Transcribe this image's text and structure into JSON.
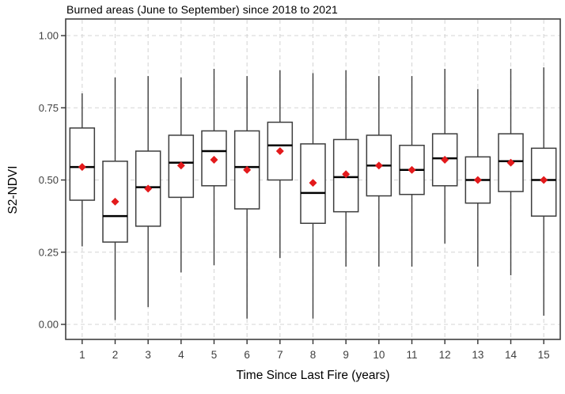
{
  "chart": {
    "title": "Burned areas (June to September) since 2018 to 2021",
    "xlabel": "Time Since Last Fire (years)",
    "ylabel": "S2-NDVI"
  },
  "colors": {
    "box_stroke": "#3d3d3d",
    "box_fill": "#ffffff",
    "median": "#000000",
    "mean_marker": "#e31a1c",
    "gridline": "#d6d6d6",
    "panel_border": "#404040",
    "tick_mark": "#333333",
    "tick_label": "#404040",
    "title_text": "#000000"
  },
  "chart_data": {
    "type": "boxplot",
    "title": "Burned areas (June to September) since 2018 to 2021",
    "xlabel": "Time Since Last Fire (years)",
    "ylabel": "S2-NDVI",
    "categories": [
      "1",
      "2",
      "3",
      "4",
      "5",
      "6",
      "7",
      "8",
      "9",
      "10",
      "11",
      "12",
      "13",
      "14",
      "15"
    ],
    "y_ticks": [
      0.0,
      0.25,
      0.5,
      0.75,
      1.0
    ],
    "y_tick_labels": [
      "0.00",
      "0.25",
      "0.50",
      "0.75",
      "1.00"
    ],
    "ylim": [
      -0.05,
      1.06
    ],
    "grid": "dashed major gridlines on both axes",
    "legend": "none",
    "mean_marker": "red filled diamond at group mean",
    "series": [
      {
        "category": "1",
        "whisker_low": 0.27,
        "q1": 0.43,
        "median": 0.545,
        "mean": 0.545,
        "q3": 0.68,
        "whisker_high": 0.8
      },
      {
        "category": "2",
        "whisker_low": 0.015,
        "q1": 0.285,
        "median": 0.375,
        "mean": 0.425,
        "q3": 0.565,
        "whisker_high": 0.855
      },
      {
        "category": "3",
        "whisker_low": 0.06,
        "q1": 0.34,
        "median": 0.475,
        "mean": 0.47,
        "q3": 0.6,
        "whisker_high": 0.86
      },
      {
        "category": "4",
        "whisker_low": 0.18,
        "q1": 0.44,
        "median": 0.56,
        "mean": 0.55,
        "q3": 0.655,
        "whisker_high": 0.855
      },
      {
        "category": "5",
        "whisker_low": 0.205,
        "q1": 0.48,
        "median": 0.6,
        "mean": 0.57,
        "q3": 0.67,
        "whisker_high": 0.885
      },
      {
        "category": "6",
        "whisker_low": 0.02,
        "q1": 0.4,
        "median": 0.545,
        "mean": 0.535,
        "q3": 0.67,
        "whisker_high": 0.86
      },
      {
        "category": "7",
        "whisker_low": 0.23,
        "q1": 0.5,
        "median": 0.62,
        "mean": 0.6,
        "q3": 0.7,
        "whisker_high": 0.88
      },
      {
        "category": "8",
        "whisker_low": 0.02,
        "q1": 0.35,
        "median": 0.455,
        "mean": 0.49,
        "q3": 0.625,
        "whisker_high": 0.87
      },
      {
        "category": "9",
        "whisker_low": 0.2,
        "q1": 0.39,
        "median": 0.51,
        "mean": 0.52,
        "q3": 0.64,
        "whisker_high": 0.88
      },
      {
        "category": "10",
        "whisker_low": 0.2,
        "q1": 0.445,
        "median": 0.55,
        "mean": 0.55,
        "q3": 0.655,
        "whisker_high": 0.86
      },
      {
        "category": "11",
        "whisker_low": 0.2,
        "q1": 0.45,
        "median": 0.535,
        "mean": 0.535,
        "q3": 0.62,
        "whisker_high": 0.86
      },
      {
        "category": "12",
        "whisker_low": 0.28,
        "q1": 0.48,
        "median": 0.575,
        "mean": 0.57,
        "q3": 0.66,
        "whisker_high": 0.885
      },
      {
        "category": "13",
        "whisker_low": 0.2,
        "q1": 0.42,
        "median": 0.5,
        "mean": 0.5,
        "q3": 0.58,
        "whisker_high": 0.815
      },
      {
        "category": "14",
        "whisker_low": 0.17,
        "q1": 0.46,
        "median": 0.565,
        "mean": 0.56,
        "q3": 0.66,
        "whisker_high": 0.885
      },
      {
        "category": "15",
        "whisker_low": 0.03,
        "q1": 0.375,
        "median": 0.5,
        "mean": 0.5,
        "q3": 0.61,
        "whisker_high": 0.89
      }
    ]
  }
}
